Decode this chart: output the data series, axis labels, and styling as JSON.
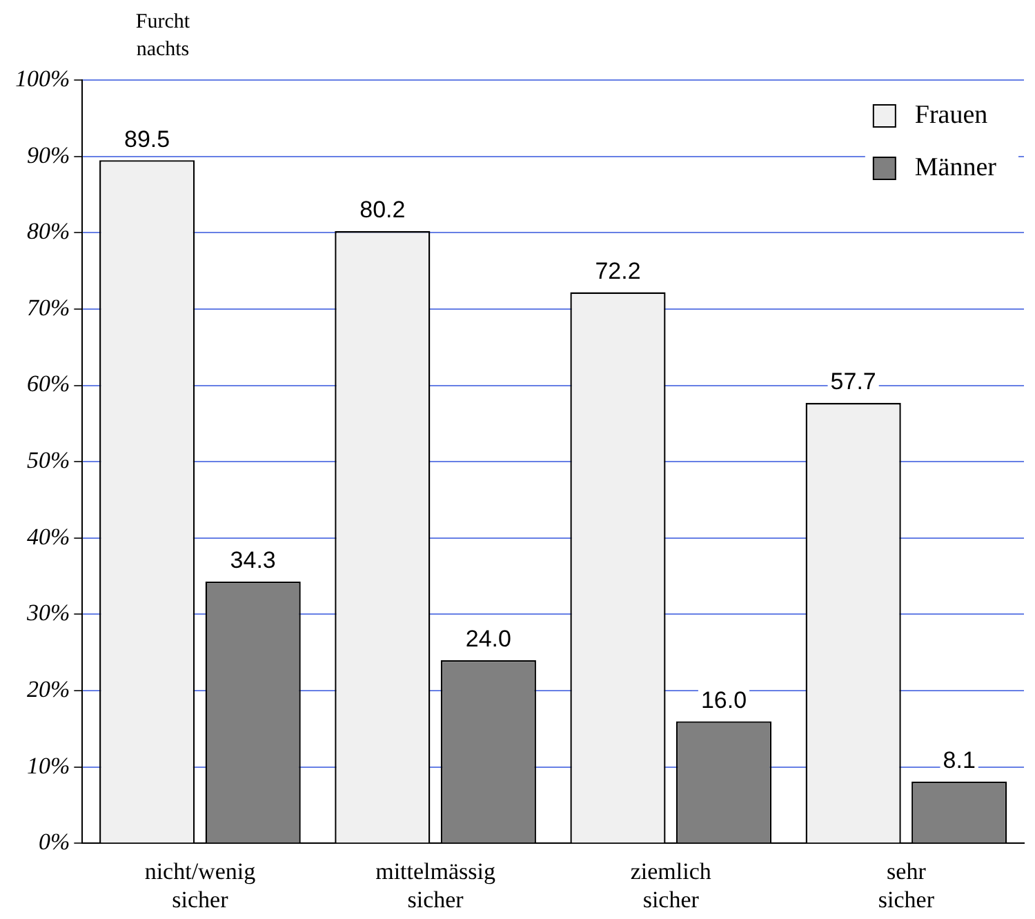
{
  "chart_data": {
    "type": "bar",
    "ylabel": "Furcht nachts",
    "categories": [
      "nicht/wenig sicher",
      "mittelmässig sicher",
      "ziemlich sicher",
      "sehr sicher"
    ],
    "series": [
      {
        "name": "Frauen",
        "color": "#f0f0f0",
        "values": [
          89.5,
          80.2,
          72.2,
          57.7
        ],
        "value_labels": [
          "89.5",
          "80.2",
          "72.2",
          "57.7"
        ]
      },
      {
        "name": "Männer",
        "color": "#808080",
        "values": [
          34.3,
          24.0,
          16.0,
          8.1
        ],
        "value_labels": [
          "34.3",
          "24.0",
          "16.0",
          "8.1"
        ]
      }
    ],
    "ylim": [
      0,
      100
    ],
    "yticks": [
      {
        "value": 0,
        "label": "0%"
      },
      {
        "value": 10,
        "label": "10%"
      },
      {
        "value": 20,
        "label": "20%"
      },
      {
        "value": 30,
        "label": "30%"
      },
      {
        "value": 40,
        "label": "40%"
      },
      {
        "value": 50,
        "label": "50%"
      },
      {
        "value": 60,
        "label": "60%"
      },
      {
        "value": 70,
        "label": "70%"
      },
      {
        "value": 80,
        "label": "80%"
      },
      {
        "value": 90,
        "label": "90%"
      },
      {
        "value": 100,
        "label": "100%"
      }
    ],
    "grid": "y",
    "legend": "top right"
  }
}
